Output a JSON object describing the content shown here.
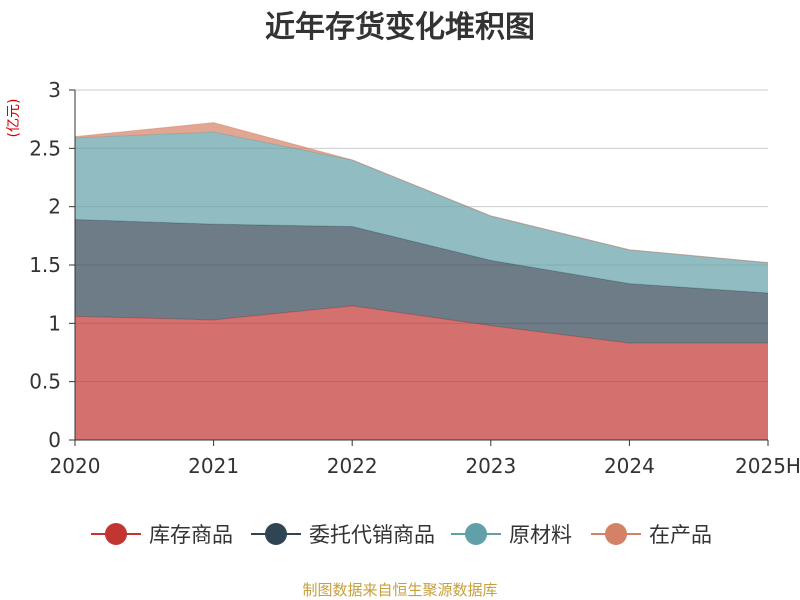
{
  "chart_data": {
    "type": "area",
    "stacked": true,
    "title": "近年存货变化堆积图",
    "unit": "(亿元)",
    "categories": [
      "2020",
      "2021",
      "2022",
      "2023",
      "2024",
      "2025H"
    ],
    "ylim": [
      0,
      3
    ],
    "yticks": [
      "0",
      "0.5",
      "1",
      "1.5",
      "2",
      "2.5",
      "3"
    ],
    "grid": true,
    "legend_position": "bottom",
    "series": [
      {
        "name": "库存商品",
        "color": "#c23531",
        "values": [
          1.06,
          1.03,
          1.15,
          0.98,
          0.83,
          0.83
        ]
      },
      {
        "name": "委托代销商品",
        "color": "#2f4554",
        "values": [
          0.83,
          0.82,
          0.68,
          0.56,
          0.51,
          0.43
        ]
      },
      {
        "name": "原材料",
        "color": "#61a0a8",
        "values": [
          0.7,
          0.79,
          0.57,
          0.38,
          0.29,
          0.26
        ]
      },
      {
        "name": "在产品",
        "color": "#d48265",
        "values": [
          0.01,
          0.08,
          0.0,
          0.0,
          0.0,
          0.0
        ]
      }
    ]
  },
  "source_text": "制图数据来自恒生聚源数据库",
  "colors": {
    "unit": "#cc0000",
    "source": "#c8a03c",
    "axis": "#333333",
    "grid": "#cccccc"
  }
}
